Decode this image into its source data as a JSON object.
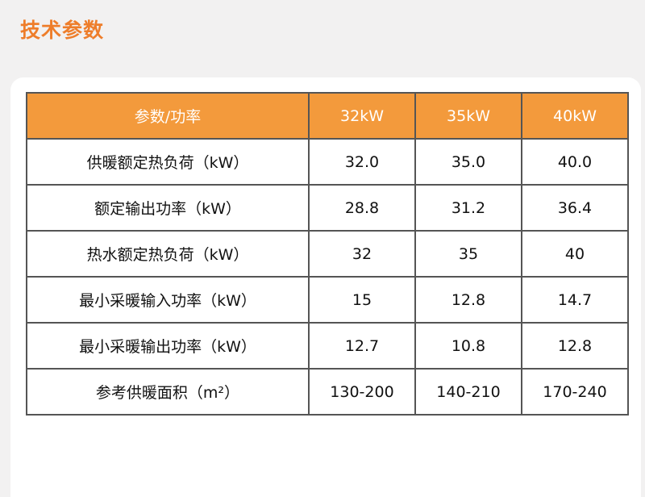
{
  "title": "技术参数",
  "colors": {
    "accent": "#ee7d2a",
    "header_bg": "#f39a3c"
  },
  "table": {
    "headers": [
      "参数/功率",
      "32kW",
      "35kW",
      "40kW"
    ],
    "rows": [
      [
        "供暖额定热负荷（kW）",
        "32.0",
        "35.0",
        "40.0"
      ],
      [
        "额定输出功率（kW）",
        "28.8",
        "31.2",
        "36.4"
      ],
      [
        "热水额定热负荷（kW）",
        "32",
        "35",
        "40"
      ],
      [
        "最小采暖输入功率（kW）",
        "15",
        "12.8",
        "14.7"
      ],
      [
        "最小采暖输出功率（kW）",
        "12.7",
        "10.8",
        "12.8"
      ],
      [
        "参考供暖面积（m²）",
        "130-200",
        "140-210",
        "170-240"
      ]
    ]
  }
}
